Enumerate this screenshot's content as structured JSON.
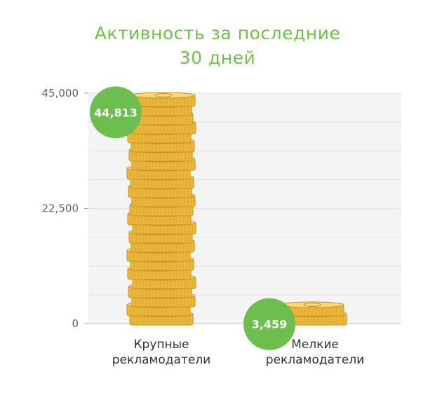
{
  "colors": {
    "title": "#6fc048",
    "badge": "#6cbf4f",
    "coin_face": "#e9b73b",
    "coin_top": "#f7d978",
    "coin_edge": "#c98f1f",
    "grid": "#e4e4e4",
    "plot_bg": "#f4f4f4"
  },
  "chart_data": {
    "type": "bar",
    "title_lines": [
      "Активность за последние",
      "30 дней"
    ],
    "categories": [
      [
        "Крупные",
        "рекламодатели"
      ],
      [
        "Мелкие",
        "рекламодатели"
      ]
    ],
    "values": [
      44813,
      3459
    ],
    "value_labels": [
      "44,813",
      "3,459"
    ],
    "ylim": [
      0,
      45000
    ],
    "yticks": [
      0,
      22500,
      45000
    ],
    "ytick_labels": [
      "0",
      "22,500",
      "45,000"
    ],
    "grid": true,
    "mark_style": "coin-stack"
  }
}
